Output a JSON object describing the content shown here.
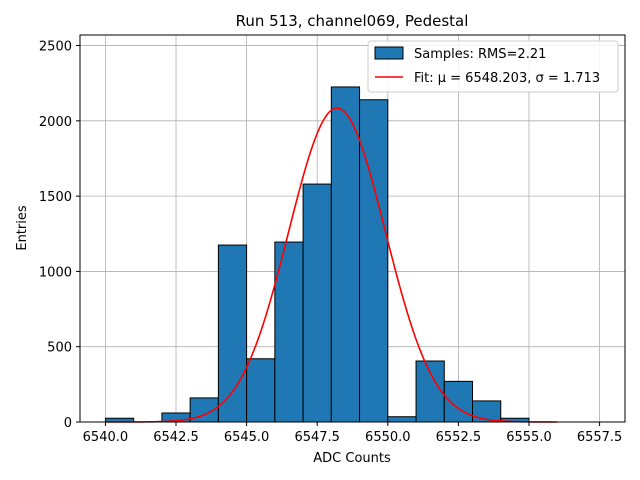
{
  "chart_data": {
    "type": "bar",
    "title": "Run 513, channel069, Pedestal",
    "xlabel": "ADC Counts",
    "ylabel": "Entries",
    "xlim": [
      6539.1,
      6558.4
    ],
    "ylim": [
      0,
      2570
    ],
    "xticks": [
      6540.0,
      6542.5,
      6545.0,
      6547.5,
      6550.0,
      6552.5,
      6555.0,
      6557.5
    ],
    "xtick_labels": [
      "6540.0",
      "6542.5",
      "6545.0",
      "6547.5",
      "6550.0",
      "6552.5",
      "6555.0",
      "6557.5"
    ],
    "yticks": [
      0,
      500,
      1000,
      1500,
      2000,
      2500
    ],
    "ytick_labels": [
      "0",
      "500",
      "1000",
      "1500",
      "2000",
      "2500"
    ],
    "grid": true,
    "legend_position": "top-right",
    "bin_edges": [
      6540,
      6541,
      6542,
      6543,
      6544,
      6545,
      6546,
      6547,
      6548,
      6549,
      6550,
      6551,
      6552,
      6553,
      6554,
      6555,
      6556,
      6557
    ],
    "series": [
      {
        "name": "Samples: RMS=2.21",
        "kind": "histogram",
        "color": "#1f77b4",
        "edgecolor": "#000000",
        "values": [
          25,
          0,
          60,
          160,
          1175,
          420,
          1195,
          1580,
          2225,
          2140,
          35,
          405,
          270,
          140,
          25,
          0,
          0
        ]
      },
      {
        "name": "Fit: μ = 6548.203, σ = 1.713",
        "kind": "line",
        "color": "#ff0000",
        "mu": 6548.203,
        "sigma": 1.713,
        "amplitude": 2085,
        "x_range": [
          6540.0,
          6556.0
        ]
      }
    ]
  }
}
